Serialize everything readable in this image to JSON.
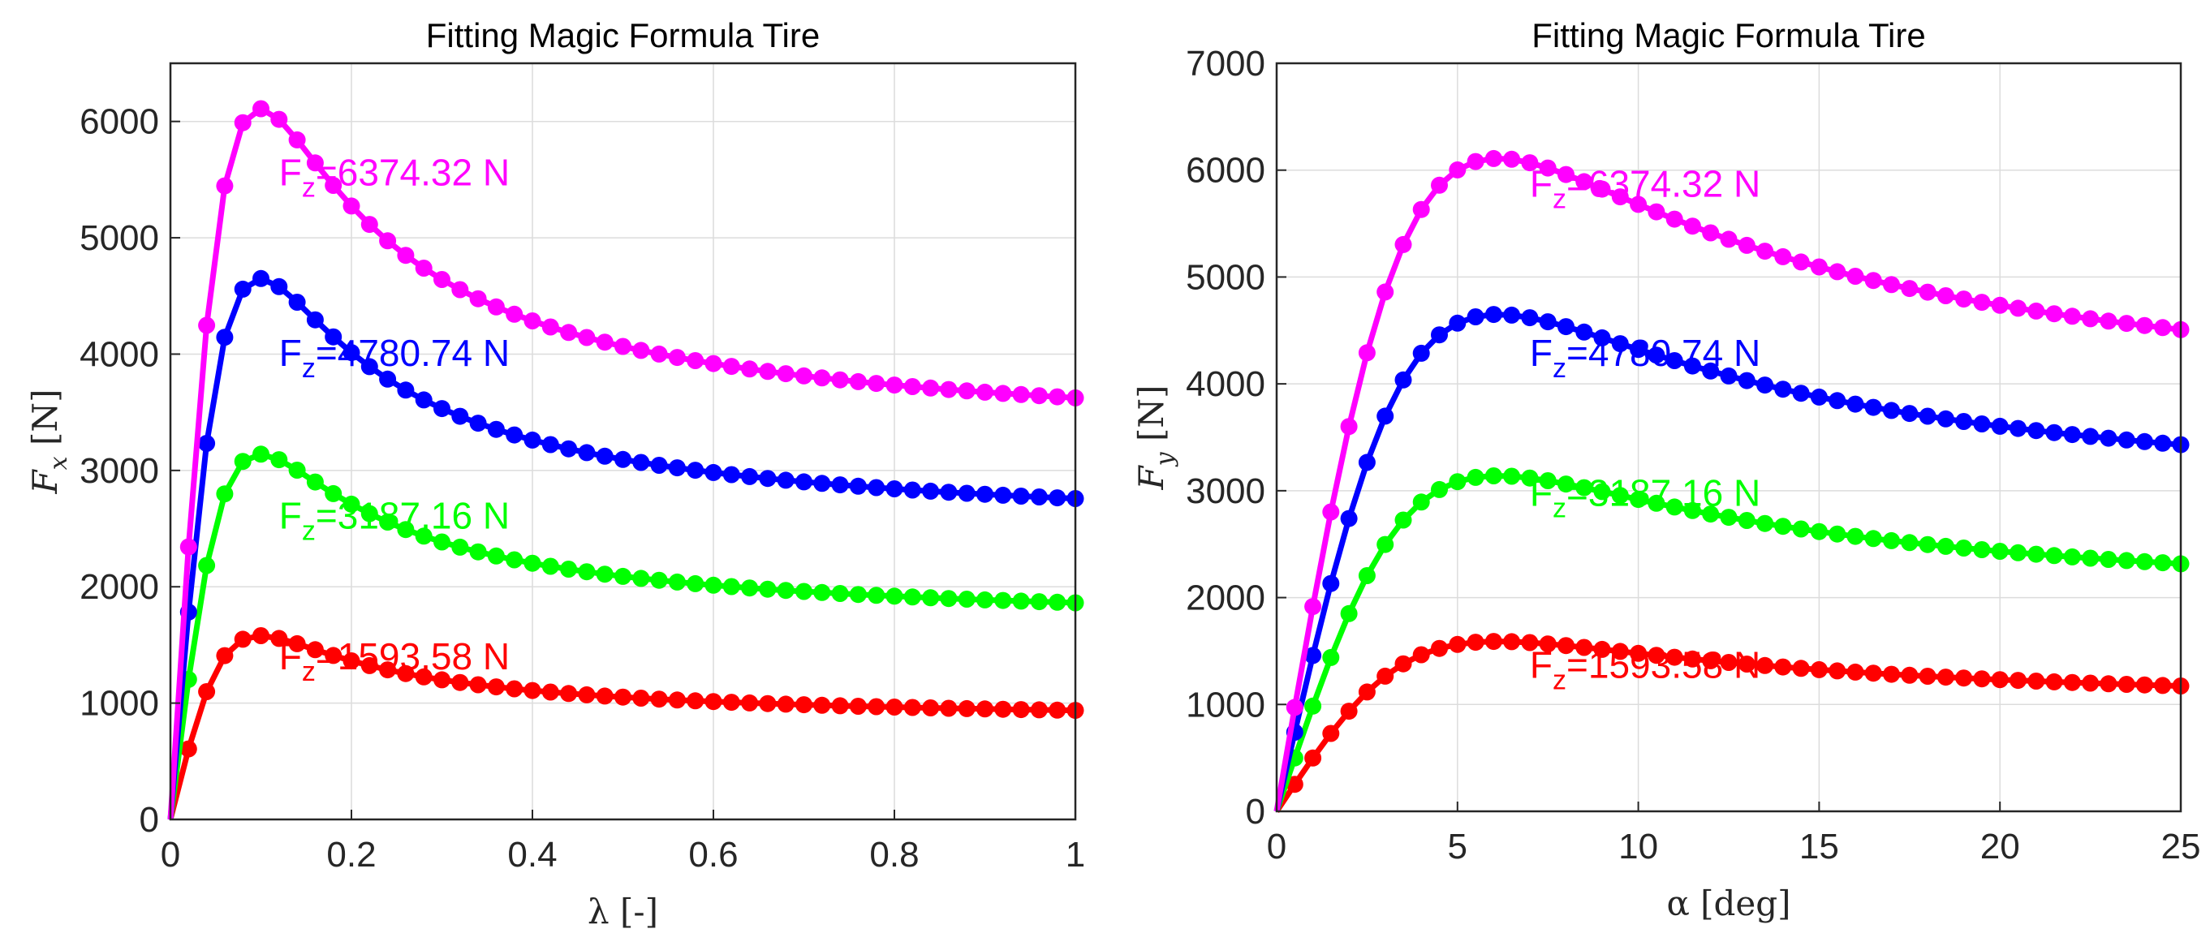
{
  "chart_data": [
    {
      "type": "line",
      "title": "Fitting Magic Formula Tire",
      "xlabel": "λ [-]",
      "ylabel": "F_x [N]",
      "ylabel_main": "F",
      "ylabel_sub": "x",
      "ylabel_unit": "[N]",
      "xlim": [
        0,
        1
      ],
      "ylim": [
        0,
        6500
      ],
      "xticks": [
        0,
        0.2,
        0.4,
        0.6,
        0.8,
        1
      ],
      "xtick_labels": [
        "0",
        "0.2",
        "0.4",
        "0.6",
        "0.8",
        "1"
      ],
      "yticks": [
        0,
        1000,
        2000,
        3000,
        4000,
        5000,
        6000
      ],
      "ytick_labels": [
        "0",
        "1000",
        "2000",
        "3000",
        "4000",
        "5000",
        "6000"
      ],
      "grid": true,
      "x_end": 1,
      "x_step": 0.02,
      "shape": {
        "B": 12,
        "C": 1.65,
        "E": -0.7
      },
      "series": [
        {
          "name": "F_z=1593.58 N",
          "label": "F",
          "label_sub": "z",
          "label_rest": "=1593.58 N",
          "color": "#ff0000",
          "peak": 1580,
          "label_at": [
            0.12,
            1290
          ]
        },
        {
          "name": "F_z=3187.16 N",
          "label": "F",
          "label_sub": "z",
          "label_rest": "=3187.16 N",
          "color": "#00ff00",
          "peak": 3140,
          "label_at": [
            0.12,
            2500
          ]
        },
        {
          "name": "F_z=4780.74 N",
          "label": "F",
          "label_sub": "z",
          "label_rest": "=4780.74 N",
          "color": "#0000ff",
          "peak": 4650,
          "label_at": [
            0.12,
            3900
          ]
        },
        {
          "name": "F_z=6374.32 N",
          "label": "F",
          "label_sub": "z",
          "label_rest": "=6374.32 N",
          "color": "#ff00ff",
          "peak": 6110,
          "label_at": [
            0.12,
            5450
          ]
        }
      ]
    },
    {
      "type": "line",
      "title": "Fitting Magic Formula Tire",
      "xlabel": "α [deg]",
      "ylabel": "F_y [N]",
      "ylabel_main": "F",
      "ylabel_sub": "y",
      "ylabel_unit": "[N]",
      "xlim": [
        0,
        25
      ],
      "ylim": [
        0,
        7000
      ],
      "xticks": [
        0,
        5,
        10,
        15,
        20,
        25
      ],
      "xtick_labels": [
        "0",
        "5",
        "10",
        "15",
        "20",
        "25"
      ],
      "yticks": [
        0,
        1000,
        2000,
        3000,
        4000,
        5000,
        6000,
        7000
      ],
      "ytick_labels": [
        "0",
        "1000",
        "2000",
        "3000",
        "4000",
        "5000",
        "6000",
        "7000"
      ],
      "grid": true,
      "x_end": 25,
      "x_step": 0.5,
      "shape": {
        "B": 0.2,
        "C": 1.6,
        "E": -0.8
      },
      "series": [
        {
          "name": "F_z=1593.58 N",
          "label": "F",
          "label_sub": "z",
          "label_rest": "=1593.58 N",
          "color": "#ff0000",
          "peak": 1590,
          "label_at": [
            7,
            1250
          ]
        },
        {
          "name": "F_z=3187.16 N",
          "label": "F",
          "label_sub": "z",
          "label_rest": "=3187.16 N",
          "color": "#00ff00",
          "peak": 3140,
          "label_at": [
            7,
            2860
          ]
        },
        {
          "name": "F_z=4780.74 N",
          "label": "F",
          "label_sub": "z",
          "label_rest": "=4780.74 N",
          "color": "#0000ff",
          "peak": 4650,
          "label_at": [
            7,
            4170
          ]
        },
        {
          "name": "F_z=6374.32 N",
          "label": "F",
          "label_sub": "z",
          "label_rest": "=6374.32 N",
          "color": "#ff00ff",
          "peak": 6110,
          "label_at": [
            7,
            5750
          ]
        }
      ]
    }
  ]
}
